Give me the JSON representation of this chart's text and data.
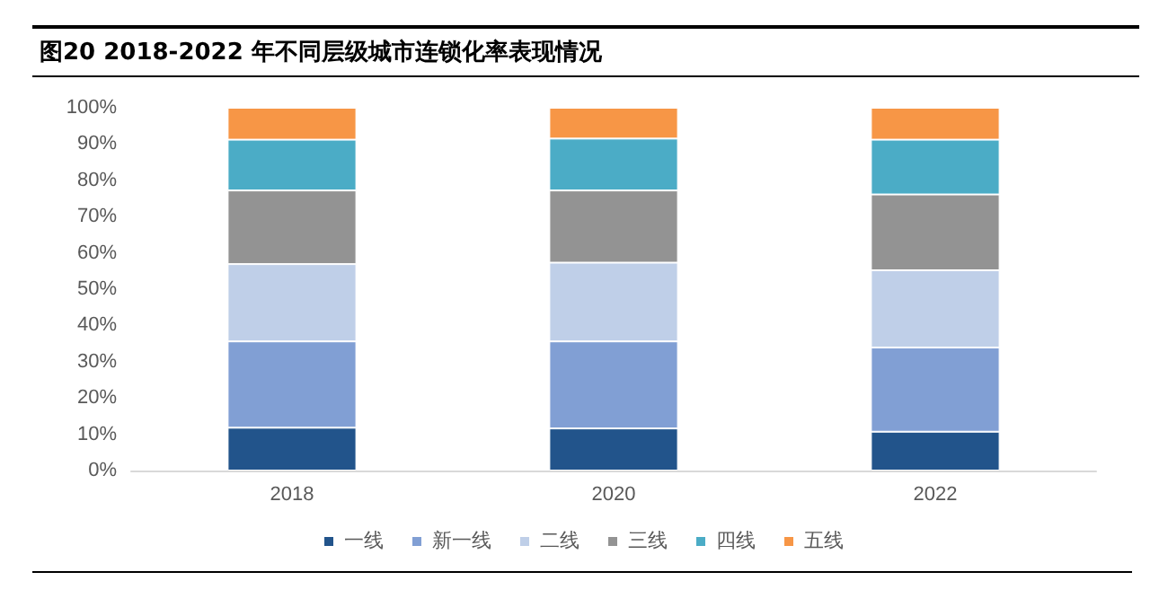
{
  "chart_data": {
    "type": "bar",
    "title": "图20 2018-2022 年不同层级城市连锁化率表现情况",
    "categories": [
      "2018",
      "2020",
      "2022"
    ],
    "stacked": true,
    "series": [
      {
        "name": "一线",
        "color": "#22548b",
        "values": [
          11.8,
          11.6,
          10.7
        ]
      },
      {
        "name": "新一线",
        "color": "#819fd4",
        "values": [
          23.8,
          24.0,
          23.2
        ]
      },
      {
        "name": "二线",
        "color": "#bfcfe8",
        "values": [
          21.3,
          21.7,
          21.3
        ]
      },
      {
        "name": "三线",
        "color": "#939393",
        "values": [
          20.3,
          19.9,
          20.9
        ]
      },
      {
        "name": "四线",
        "color": "#4bacc6",
        "values": [
          14.0,
          14.3,
          15.1
        ]
      },
      {
        "name": "五线",
        "color": "#f79646",
        "values": [
          8.8,
          8.5,
          8.8
        ]
      }
    ],
    "ylim": [
      0,
      100
    ],
    "yticks": [
      {
        "value": 0,
        "label": "0%"
      },
      {
        "value": 10,
        "label": "10%"
      },
      {
        "value": 20,
        "label": "20%"
      },
      {
        "value": 30,
        "label": "30%"
      },
      {
        "value": 40,
        "label": "40%"
      },
      {
        "value": 50,
        "label": "50%"
      },
      {
        "value": 60,
        "label": "60%"
      },
      {
        "value": 70,
        "label": "70%"
      },
      {
        "value": 80,
        "label": "80%"
      },
      {
        "value": 90,
        "label": "90%"
      },
      {
        "value": 100,
        "label": "100%"
      }
    ],
    "grid": false,
    "legend": "bottom"
  }
}
